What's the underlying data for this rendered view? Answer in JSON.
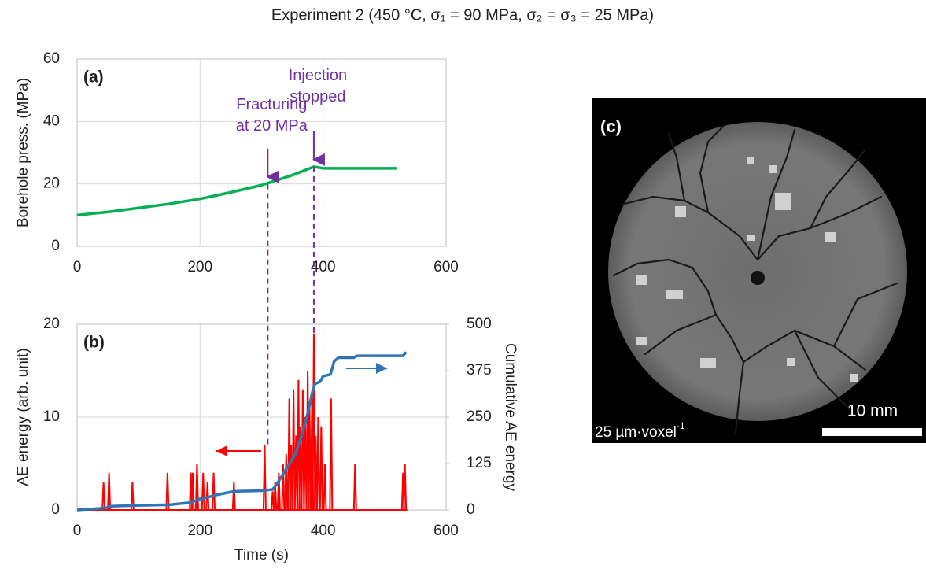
{
  "title": "Experiment 2 (450 °C, σ₁ = 90 MPa, σ₂ = σ₃ = 25 MPa)",
  "chart_data": [
    {
      "type": "line",
      "panel_label": "(a)",
      "ylabel": "Borehole press. (MPa)",
      "xlim": [
        0,
        600
      ],
      "xticks": [
        0,
        200,
        400,
        600
      ],
      "ylim": [
        0,
        60
      ],
      "yticks": [
        0,
        20,
        40,
        60
      ],
      "grid": true,
      "series": [
        {
          "kind": "line",
          "color": "#00b050",
          "x": [
            0,
            50,
            100,
            150,
            200,
            250,
            300,
            350,
            385,
            400,
            450,
            520
          ],
          "values": [
            10,
            11,
            12.3,
            13.6,
            15.2,
            17.3,
            19.6,
            22.8,
            25.5,
            25,
            25,
            25
          ]
        }
      ],
      "annotations": [
        {
          "text": [
            "Fracturing",
            "at 20 MPa"
          ],
          "x": 310,
          "y": 20
        },
        {
          "text": [
            "Injection",
            "stopped"
          ],
          "x": 385,
          "y": 25.5
        }
      ]
    },
    {
      "type": "line",
      "panel_label": "(b)",
      "xlabel": "Time (s)",
      "ylabel": "AE energy (arb. unit)",
      "y2label": "Cumulative AE energy",
      "xlim": [
        0,
        600
      ],
      "xticks": [
        0,
        200,
        400,
        600
      ],
      "ylim": [
        0,
        20
      ],
      "yticks": [
        0,
        10,
        20
      ],
      "y2lim": [
        0,
        500
      ],
      "y2ticks": [
        0,
        125,
        250,
        375,
        500
      ],
      "grid": true,
      "series": [
        {
          "kind": "stem",
          "color": "#ff0000",
          "x": [
            43,
            52,
            90,
            147,
            185,
            188,
            195,
            205,
            212,
            222,
            255,
            305,
            318,
            322,
            328,
            335,
            340,
            345,
            348,
            352,
            356,
            360,
            363,
            367,
            371,
            375,
            378,
            382,
            385,
            388,
            392,
            397,
            403,
            413,
            452,
            530,
            533
          ],
          "values": [
            3,
            4,
            3,
            4,
            4,
            4,
            5,
            4,
            3,
            4,
            3,
            7,
            2,
            3,
            4,
            5,
            6,
            12,
            7,
            13,
            8,
            14,
            9,
            13,
            10,
            15,
            11,
            12,
            19,
            8,
            10,
            9,
            5,
            12,
            5,
            4,
            5
          ]
        },
        {
          "kind": "line",
          "color": "#2e75b6",
          "axis": "y2",
          "x": [
            0,
            45,
            55,
            90,
            150,
            185,
            200,
            215,
            225,
            255,
            300,
            318,
            325,
            340,
            355,
            365,
            375,
            383,
            387,
            395,
            400,
            412,
            418,
            425,
            450,
            455,
            530,
            535
          ],
          "values": [
            0,
            5,
            10,
            12,
            14,
            20,
            30,
            35,
            40,
            50,
            52,
            55,
            70,
            110,
            150,
            200,
            260,
            320,
            340,
            345,
            360,
            365,
            400,
            410,
            410,
            415,
            415,
            425
          ]
        }
      ]
    }
  ],
  "image": {
    "panel_label": "(c)",
    "scale_bar": "10 mm",
    "resolution": "25 µm·voxel",
    "resolution_exponent": "-1"
  }
}
